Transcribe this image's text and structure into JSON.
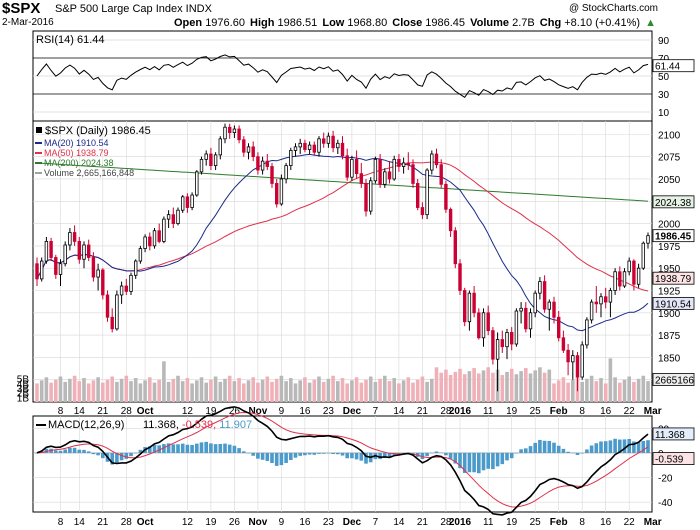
{
  "header": {
    "ticker": "$SPX",
    "index_name": "S&P 500 Large Cap Index INDX",
    "date": "2-Mar-2016",
    "brand": "@ StockCharts.com",
    "open_label": "Open",
    "open": "1976.60",
    "high_label": "High",
    "high": "1986.51",
    "low_label": "Low",
    "low": "1968.80",
    "close_label": "Close",
    "close": "1986.45",
    "volume_label": "Volume",
    "volume": "2.7B",
    "chg_label": "Chg",
    "chg": "+8.10 (+0.41%)",
    "chg_arrow": "▲"
  },
  "colors": {
    "up": "#000000",
    "down": "#cc0033",
    "ma20": "#1a2a8c",
    "ma50": "#e0304a",
    "ma200": "#2d7a2d",
    "vol_up": "#b8b8b8",
    "vol_down": "#f0b0b8",
    "macd_hist": "#4a9acb",
    "rsi_line": "#000000",
    "grid": "#d8d8d8"
  },
  "chart_data": [
    {
      "type": "line",
      "title": "RSI(14) 61.44",
      "indicator": "RSI(14)",
      "last_value": 61.44,
      "last_label": "61.44",
      "y_ticks": [
        10,
        30,
        50,
        70,
        90
      ],
      "ylim": [
        0,
        100
      ],
      "note": "RSI values read approximately from the plot, one per trading day"
    },
    {
      "type": "candlestick",
      "title": "$SPX (Daily) 1986.45",
      "legend": [
        {
          "name": "MA(20) 1910.54",
          "color": "#1a2a8c"
        },
        {
          "name": "MA(50) 1938.79",
          "color": "#e0304a"
        },
        {
          "name": "MA(200) 2024.38",
          "color": "#2d7a2d"
        },
        {
          "name": "Volume 2,665,166,848",
          "color": "#a0a0a0"
        }
      ],
      "y_ticks": [
        1825,
        1850,
        1875,
        1900,
        1925,
        1950,
        1975,
        2000,
        2025,
        2050,
        2075,
        2100
      ],
      "ylim": [
        1800,
        2115
      ],
      "vol_ticks": [
        "1B",
        "2B",
        "3B",
        "4B",
        "5B"
      ],
      "vol_tick_values": [
        1,
        2,
        3,
        4,
        5
      ],
      "vol_max": 9,
      "price_tags": [
        {
          "label": "1986.45",
          "value": 1986.45,
          "bold": true
        },
        {
          "label": "1938.79",
          "value": 1938.79
        },
        {
          "label": "1910.54",
          "value": 1910.54
        },
        {
          "label": "2024.38",
          "value": 2024.38
        }
      ],
      "volume_tag": {
        "label": "2665166",
        "value": 2.67
      },
      "x_labels": [
        "8",
        "14",
        "21",
        "28",
        "Oct",
        "12",
        "19",
        "26",
        "Nov",
        "9",
        "16",
        "23",
        "Dec",
        "7",
        "14",
        "21",
        "28",
        "2016",
        "11",
        "19",
        "25",
        "Feb",
        "8",
        "16",
        "22",
        "Mar"
      ],
      "x_label_index": [
        5,
        9,
        14,
        19,
        23,
        32,
        37,
        42,
        47,
        52,
        57,
        62,
        67,
        72,
        77,
        82,
        87,
        90,
        96,
        101,
        106,
        111,
        116,
        121,
        126,
        131
      ],
      "month_labels": [
        "Oct",
        "Nov",
        "Dec",
        "2016",
        "Feb",
        "Mar"
      ],
      "ohlc": [
        [
          1955,
          1962,
          1930,
          1938
        ],
        [
          1938,
          1962,
          1935,
          1958
        ],
        [
          1958,
          1985,
          1955,
          1980
        ],
        [
          1980,
          1984,
          1958,
          1962
        ],
        [
          1962,
          1965,
          1938,
          1943
        ],
        [
          1943,
          1960,
          1930,
          1955
        ],
        [
          1955,
          1980,
          1952,
          1976
        ],
        [
          1976,
          1995,
          1970,
          1990
        ],
        [
          1990,
          1998,
          1975,
          1980
        ],
        [
          1980,
          1985,
          1955,
          1960
        ],
        [
          1960,
          1980,
          1950,
          1976
        ],
        [
          1976,
          1982,
          1958,
          1962
        ],
        [
          1962,
          1968,
          1935,
          1940
        ],
        [
          1940,
          1955,
          1925,
          1948
        ],
        [
          1948,
          1950,
          1915,
          1920
        ],
        [
          1920,
          1925,
          1890,
          1895
        ],
        [
          1895,
          1905,
          1878,
          1882
        ],
        [
          1882,
          1925,
          1880,
          1920
        ],
        [
          1920,
          1935,
          1910,
          1930
        ],
        [
          1930,
          1938,
          1920,
          1924
        ],
        [
          1924,
          1945,
          1920,
          1942
        ],
        [
          1942,
          1960,
          1938,
          1958
        ],
        [
          1958,
          1975,
          1955,
          1972
        ],
        [
          1972,
          1988,
          1968,
          1985
        ],
        [
          1985,
          1990,
          1970,
          1975
        ],
        [
          1975,
          1995,
          1972,
          1992
        ],
        [
          1992,
          2000,
          1978,
          1980
        ],
        [
          1980,
          2008,
          1978,
          2005
        ],
        [
          2005,
          2015,
          1995,
          2010
        ],
        [
          2010,
          2018,
          1995,
          2000
        ],
        [
          2000,
          2018,
          1998,
          2015
        ],
        [
          2015,
          2032,
          2012,
          2030
        ],
        [
          2030,
          2034,
          2012,
          2018
        ],
        [
          2018,
          2035,
          2015,
          2032
        ],
        [
          2032,
          2060,
          2030,
          2058
        ],
        [
          2058,
          2075,
          2055,
          2072
        ],
        [
          2072,
          2082,
          2065,
          2078
        ],
        [
          2078,
          2085,
          2060,
          2065
        ],
        [
          2065,
          2080,
          2060,
          2077
        ],
        [
          2077,
          2098,
          2072,
          2095
        ],
        [
          2095,
          2112,
          2090,
          2108
        ],
        [
          2108,
          2112,
          2095,
          2102
        ],
        [
          2102,
          2110,
          2096,
          2106
        ],
        [
          2106,
          2110,
          2090,
          2094
        ],
        [
          2094,
          2098,
          2075,
          2080
        ],
        [
          2080,
          2090,
          2072,
          2086
        ],
        [
          2086,
          2092,
          2070,
          2075
        ],
        [
          2075,
          2080,
          2055,
          2060
        ],
        [
          2060,
          2075,
          2055,
          2070
        ],
        [
          2070,
          2078,
          2060,
          2064
        ],
        [
          2064,
          2068,
          2040,
          2045
        ],
        [
          2045,
          2050,
          2018,
          2022
        ],
        [
          2022,
          2055,
          2020,
          2050
        ],
        [
          2050,
          2068,
          2045,
          2065
        ],
        [
          2065,
          2085,
          2060,
          2082
        ],
        [
          2082,
          2090,
          2075,
          2086
        ],
        [
          2086,
          2095,
          2078,
          2090
        ],
        [
          2090,
          2094,
          2080,
          2083
        ],
        [
          2083,
          2092,
          2078,
          2088
        ],
        [
          2088,
          2092,
          2076,
          2080
        ],
        [
          2080,
          2098,
          2075,
          2095
        ],
        [
          2095,
          2102,
          2085,
          2090
        ],
        [
          2090,
          2102,
          2085,
          2098
        ],
        [
          2098,
          2104,
          2080,
          2085
        ],
        [
          2085,
          2094,
          2078,
          2090
        ],
        [
          2090,
          2098,
          2072,
          2076
        ],
        [
          2076,
          2084,
          2048,
          2052
        ],
        [
          2052,
          2076,
          2048,
          2072
        ],
        [
          2072,
          2082,
          2050,
          2056
        ],
        [
          2056,
          2068,
          2040,
          2045
        ],
        [
          2045,
          2050,
          2008,
          2014
        ],
        [
          2014,
          2052,
          2010,
          2048
        ],
        [
          2048,
          2075,
          2045,
          2072
        ],
        [
          2072,
          2078,
          2040,
          2044
        ],
        [
          2044,
          2062,
          2040,
          2058
        ],
        [
          2058,
          2070,
          2045,
          2050
        ],
        [
          2050,
          2076,
          2048,
          2072
        ],
        [
          2072,
          2078,
          2058,
          2064
        ],
        [
          2064,
          2074,
          2056,
          2068
        ],
        [
          2068,
          2080,
          2060,
          2066
        ],
        [
          2066,
          2072,
          2040,
          2045
        ],
        [
          2045,
          2050,
          2015,
          2018
        ],
        [
          2018,
          2024,
          2005,
          2010
        ],
        [
          2010,
          2062,
          2005,
          2060
        ],
        [
          2060,
          2082,
          2055,
          2078
        ],
        [
          2078,
          2084,
          2062,
          2066
        ],
        [
          2066,
          2072,
          2040,
          2044
        ],
        [
          2044,
          2048,
          2012,
          2016
        ],
        [
          2016,
          2018,
          1985,
          1992
        ],
        [
          1992,
          1996,
          1950,
          1955
        ],
        [
          1955,
          1960,
          1920,
          1925
        ],
        [
          1925,
          1928,
          1885,
          1890
        ],
        [
          1890,
          1925,
          1880,
          1922
        ],
        [
          1922,
          1930,
          1895,
          1900
        ],
        [
          1900,
          1905,
          1870,
          1872
        ],
        [
          1872,
          1905,
          1862,
          1900
        ],
        [
          1900,
          1908,
          1875,
          1880
        ],
        [
          1880,
          1884,
          1842,
          1848
        ],
        [
          1848,
          1878,
          1812,
          1870
        ],
        [
          1870,
          1880,
          1855,
          1862
        ],
        [
          1862,
          1882,
          1848,
          1878
        ],
        [
          1878,
          1884,
          1858,
          1865
        ],
        [
          1865,
          1905,
          1862,
          1902
        ],
        [
          1902,
          1912,
          1888,
          1905
        ],
        [
          1905,
          1912,
          1878,
          1882
        ],
        [
          1882,
          1905,
          1872,
          1900
        ],
        [
          1900,
          1925,
          1895,
          1922
        ],
        [
          1922,
          1940,
          1915,
          1935
        ],
        [
          1935,
          1942,
          1900,
          1904
        ],
        [
          1904,
          1915,
          1880,
          1912
        ],
        [
          1912,
          1918,
          1888,
          1895
        ],
        [
          1895,
          1902,
          1868,
          1872
        ],
        [
          1872,
          1880,
          1855,
          1858
        ],
        [
          1858,
          1865,
          1830,
          1845
        ],
        [
          1845,
          1858,
          1825,
          1852
        ],
        [
          1852,
          1856,
          1812,
          1828
        ],
        [
          1828,
          1868,
          1825,
          1864
        ],
        [
          1864,
          1895,
          1860,
          1892
        ],
        [
          1892,
          1915,
          1888,
          1912
        ],
        [
          1912,
          1930,
          1900,
          1910
        ],
        [
          1910,
          1922,
          1895,
          1918
        ],
        [
          1918,
          1928,
          1905,
          1912
        ],
        [
          1912,
          1928,
          1895,
          1925
        ],
        [
          1925,
          1950,
          1920,
          1946
        ],
        [
          1946,
          1952,
          1925,
          1930
        ],
        [
          1930,
          1950,
          1928,
          1946
        ],
        [
          1946,
          1962,
          1942,
          1958
        ],
        [
          1958,
          1960,
          1925,
          1932
        ],
        [
          1932,
          1955,
          1928,
          1950
        ],
        [
          1950,
          1980,
          1948,
          1978
        ],
        [
          1978,
          1990,
          1972,
          1986.45
        ]
      ]
    },
    {
      "type": "line",
      "title": "MACD(12,26,9) 11.368, -0.539, 11.907",
      "legend_name": "MACD(12,26,9)",
      "values_label": "11.368, -0.539, 11.907",
      "macd_value": "11.368",
      "signal_value": "-0.539",
      "hist_value": "11.907",
      "y_ticks": [
        -40,
        -20,
        0,
        20
      ],
      "ylim": [
        -48,
        30
      ],
      "value_tags": [
        {
          "label": "11.368",
          "value": 11.368
        },
        {
          "label": "-0.539",
          "value": -0.539
        }
      ]
    }
  ]
}
